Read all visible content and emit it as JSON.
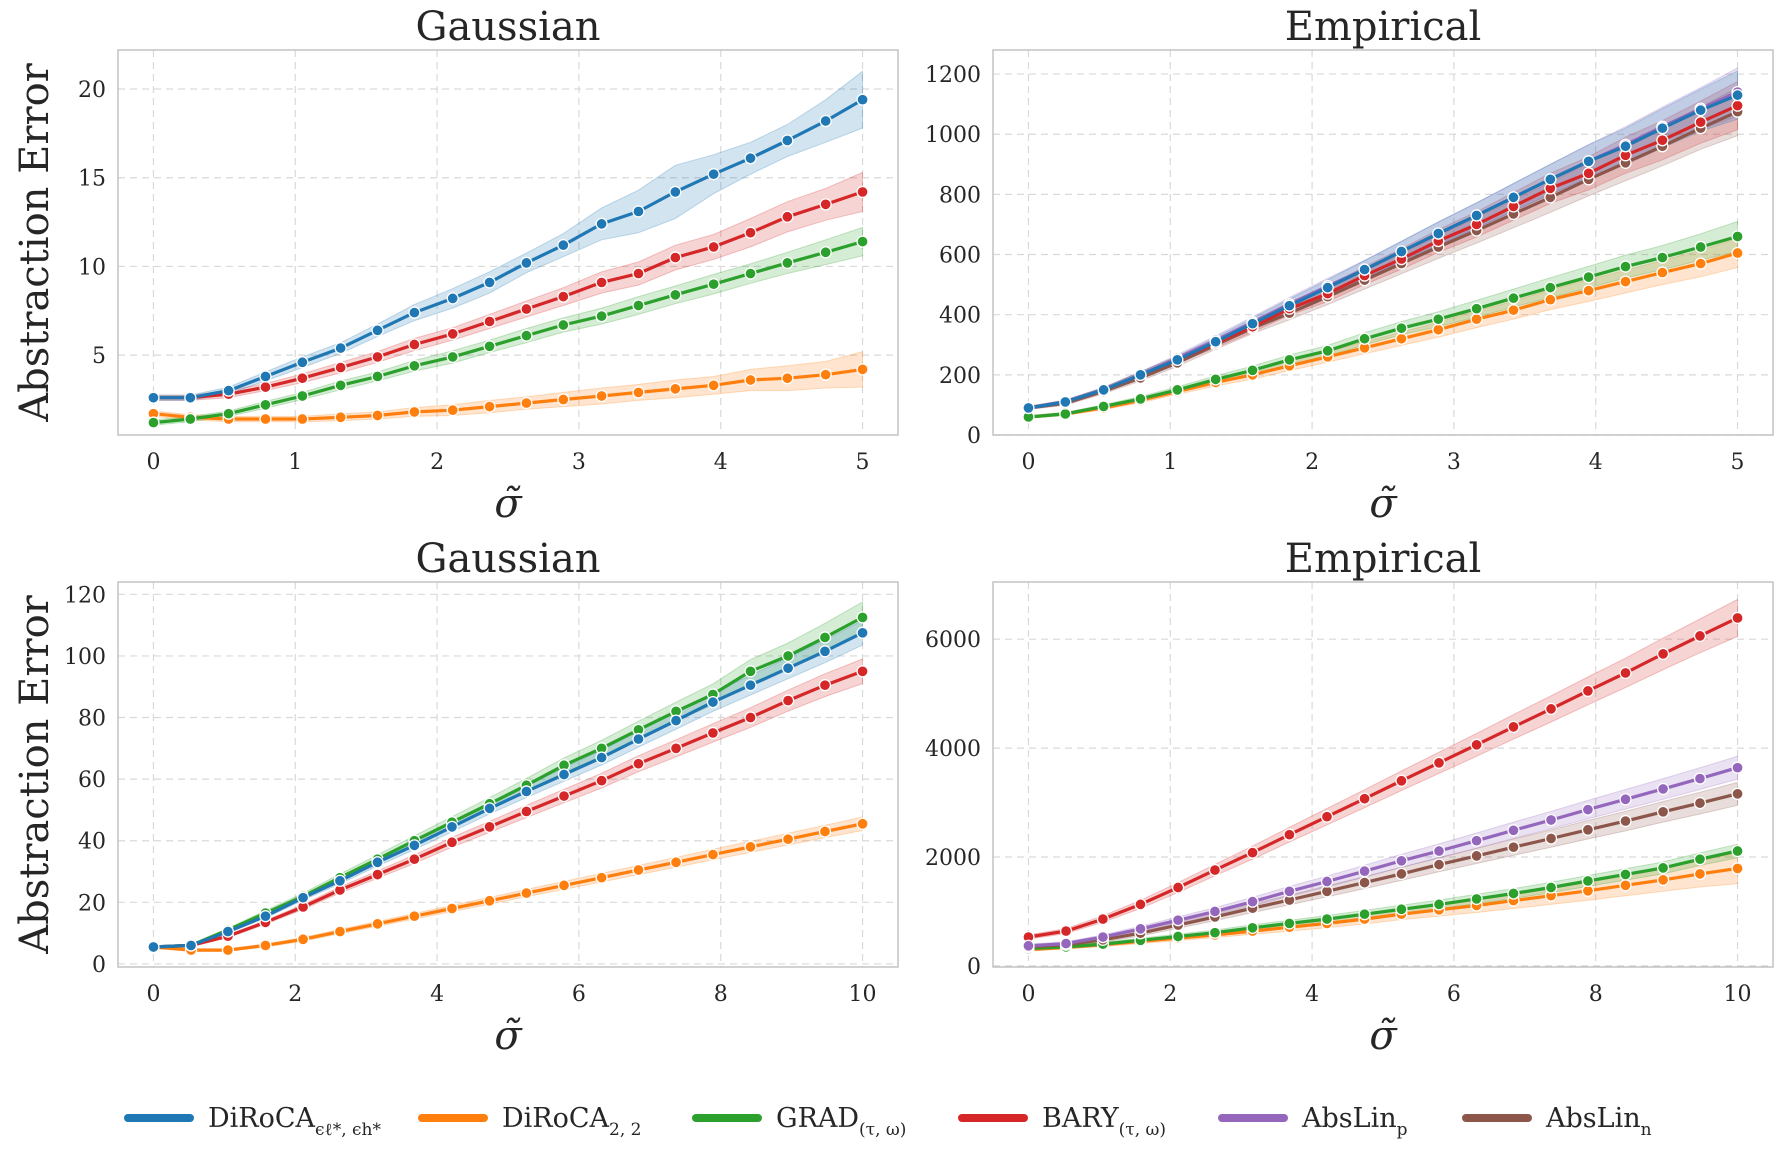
{
  "colors": {
    "diroca_opt": "#1f77b4",
    "diroca_22": "#ff7f0e",
    "grad": "#2ca02c",
    "bary": "#d62728",
    "abslin_p": "#9467bd",
    "abslin_n": "#8c564b"
  },
  "legend": [
    {
      "key": "diroca_opt",
      "base": "DiRoCA",
      "sub": "ϵℓ*, ϵh*"
    },
    {
      "key": "diroca_22",
      "base": "DiRoCA",
      "sub": "2, 2"
    },
    {
      "key": "grad",
      "base": "GRAD",
      "sub": "(τ, ω)"
    },
    {
      "key": "bary",
      "base": "BARY",
      "sub": "(τ, ω)"
    },
    {
      "key": "abslin_p",
      "base": "AbsLin",
      "sub": "p"
    },
    {
      "key": "abslin_n",
      "base": "AbsLin",
      "sub": "n"
    }
  ],
  "chart_data": [
    {
      "type": "line",
      "title": "Gaussian",
      "xlabel": "σ̃",
      "ylabel": "Abstraction Error",
      "xlim": [
        -0.25,
        5.25
      ],
      "ylim": [
        0.5,
        22.2
      ],
      "xticks": [
        "0",
        "1",
        "2",
        "3",
        "4",
        "5"
      ],
      "yticks": [
        "5",
        "10",
        "15",
        "20"
      ],
      "x": [
        0,
        0.26,
        0.53,
        0.79,
        1.05,
        1.32,
        1.58,
        1.84,
        2.11,
        2.37,
        2.63,
        2.89,
        3.16,
        3.42,
        3.68,
        3.95,
        4.21,
        4.47,
        4.74,
        5.0
      ],
      "series": [
        {
          "key": "diroca_opt",
          "values": [
            2.6,
            2.6,
            3.0,
            3.8,
            4.6,
            5.4,
            6.4,
            7.4,
            8.2,
            9.1,
            10.2,
            11.2,
            12.4,
            13.1,
            14.2,
            15.2,
            16.1,
            17.1,
            18.2,
            19.4
          ],
          "band": [
            0.15,
            0.15,
            0.2,
            0.25,
            0.3,
            0.3,
            0.35,
            0.45,
            0.55,
            0.6,
            0.55,
            0.65,
            0.9,
            1.2,
            1.5,
            1.1,
            0.9,
            0.9,
            1.2,
            1.6
          ]
        },
        {
          "key": "diroca_22",
          "values": [
            1.7,
            1.5,
            1.4,
            1.4,
            1.4,
            1.5,
            1.6,
            1.8,
            1.9,
            2.1,
            2.3,
            2.5,
            2.7,
            2.9,
            3.1,
            3.3,
            3.6,
            3.7,
            3.9,
            4.2
          ],
          "band": [
            0.15,
            0.15,
            0.15,
            0.15,
            0.15,
            0.2,
            0.2,
            0.25,
            0.3,
            0.35,
            0.35,
            0.4,
            0.45,
            0.45,
            0.5,
            0.5,
            0.6,
            0.7,
            0.75,
            1.0
          ]
        },
        {
          "key": "grad",
          "values": [
            1.2,
            1.4,
            1.7,
            2.2,
            2.7,
            3.3,
            3.8,
            4.4,
            4.9,
            5.5,
            6.1,
            6.7,
            7.2,
            7.8,
            8.4,
            9.0,
            9.6,
            10.2,
            10.8,
            11.4
          ],
          "band": [
            0.15,
            0.15,
            0.15,
            0.2,
            0.2,
            0.25,
            0.25,
            0.3,
            0.35,
            0.35,
            0.4,
            0.4,
            0.45,
            0.5,
            0.5,
            0.55,
            0.55,
            0.6,
            0.7,
            0.8
          ]
        },
        {
          "key": "bary",
          "values": [
            2.6,
            2.6,
            2.8,
            3.2,
            3.7,
            4.3,
            4.9,
            5.6,
            6.2,
            6.9,
            7.6,
            8.3,
            9.1,
            9.6,
            10.5,
            11.1,
            11.9,
            12.8,
            13.5,
            14.2
          ],
          "band": [
            0.15,
            0.15,
            0.2,
            0.2,
            0.25,
            0.3,
            0.3,
            0.35,
            0.35,
            0.4,
            0.45,
            0.5,
            0.6,
            0.65,
            0.7,
            0.7,
            0.8,
            0.85,
            0.9,
            1.1
          ]
        }
      ]
    },
    {
      "type": "line",
      "title": "Empirical",
      "xlabel": "σ̃",
      "ylabel": "",
      "xlim": [
        -0.25,
        5.25
      ],
      "ylim": [
        0,
        1280
      ],
      "xticks": [
        "0",
        "1",
        "2",
        "3",
        "4",
        "5"
      ],
      "yticks": [
        "0",
        "200",
        "400",
        "600",
        "800",
        "1000",
        "1200"
      ],
      "x": [
        0,
        0.26,
        0.53,
        0.79,
        1.05,
        1.32,
        1.58,
        1.84,
        2.11,
        2.37,
        2.63,
        2.89,
        3.16,
        3.42,
        3.68,
        3.95,
        4.21,
        4.47,
        4.74,
        5.0
      ],
      "series": [
        {
          "key": "diroca_opt",
          "values": [
            90,
            110,
            150,
            200,
            250,
            310,
            370,
            430,
            490,
            550,
            610,
            670,
            730,
            790,
            850,
            910,
            960,
            1020,
            1080,
            1130
          ],
          "band": [
            5,
            6,
            8,
            10,
            12,
            15,
            18,
            22,
            26,
            30,
            34,
            38,
            42,
            46,
            50,
            55,
            60,
            65,
            70,
            80
          ]
        },
        {
          "key": "diroca_22",
          "values": [
            60,
            70,
            90,
            115,
            145,
            175,
            200,
            230,
            260,
            290,
            320,
            350,
            385,
            415,
            450,
            480,
            510,
            540,
            570,
            605
          ],
          "band": [
            4,
            5,
            6,
            8,
            10,
            12,
            14,
            16,
            18,
            20,
            22,
            25,
            28,
            30,
            33,
            36,
            38,
            40,
            44,
            48
          ]
        },
        {
          "key": "grad",
          "values": [
            60,
            70,
            95,
            120,
            150,
            185,
            215,
            250,
            280,
            320,
            355,
            385,
            420,
            455,
            490,
            525,
            560,
            590,
            625,
            660
          ],
          "band": [
            4,
            5,
            6,
            8,
            10,
            12,
            14,
            16,
            18,
            20,
            22,
            25,
            28,
            30,
            33,
            36,
            38,
            40,
            44,
            50
          ]
        },
        {
          "key": "bary",
          "values": [
            90,
            110,
            150,
            200,
            250,
            305,
            360,
            420,
            470,
            530,
            585,
            645,
            700,
            760,
            820,
            870,
            930,
            980,
            1040,
            1095
          ],
          "band": [
            5,
            6,
            8,
            10,
            12,
            15,
            18,
            22,
            26,
            30,
            34,
            38,
            42,
            46,
            50,
            55,
            60,
            65,
            70,
            80
          ]
        },
        {
          "key": "abslin_p",
          "values": [
            90,
            110,
            150,
            200,
            255,
            315,
            375,
            435,
            495,
            550,
            610,
            670,
            730,
            790,
            850,
            910,
            965,
            1025,
            1085,
            1140
          ],
          "band": [
            5,
            6,
            8,
            10,
            12,
            15,
            18,
            22,
            26,
            30,
            34,
            38,
            42,
            46,
            50,
            55,
            60,
            65,
            70,
            80
          ]
        },
        {
          "key": "abslin_n",
          "values": [
            90,
            105,
            145,
            190,
            240,
            300,
            355,
            405,
            460,
            515,
            570,
            625,
            680,
            735,
            790,
            850,
            905,
            960,
            1020,
            1075
          ],
          "band": [
            5,
            6,
            8,
            10,
            12,
            15,
            18,
            22,
            26,
            30,
            34,
            38,
            42,
            46,
            50,
            55,
            60,
            65,
            70,
            80
          ]
        }
      ]
    },
    {
      "type": "line",
      "title": "Gaussian",
      "xlabel": "σ̃",
      "ylabel": "Abstraction Error",
      "xlim": [
        -0.5,
        10.5
      ],
      "ylim": [
        -1,
        124
      ],
      "xticks": [
        "0",
        "2",
        "4",
        "6",
        "8",
        "10"
      ],
      "yticks": [
        "0",
        "20",
        "40",
        "60",
        "80",
        "100",
        "120"
      ],
      "x": [
        0,
        0.53,
        1.05,
        1.58,
        2.11,
        2.63,
        3.16,
        3.68,
        4.21,
        4.74,
        5.26,
        5.79,
        6.32,
        6.84,
        7.37,
        7.89,
        8.42,
        8.95,
        9.47,
        10.0
      ],
      "series": [
        {
          "key": "diroca_opt",
          "values": [
            5.5,
            6.0,
            10.5,
            15.5,
            21.5,
            27.0,
            33.0,
            38.5,
            44.5,
            50.5,
            56.0,
            61.5,
            67.0,
            73.0,
            79.0,
            85.0,
            90.5,
            96.0,
            101.5,
            107.5
          ],
          "band": [
            0.4,
            0.4,
            0.5,
            0.6,
            0.8,
            1.0,
            1.2,
            1.4,
            1.6,
            1.8,
            2.0,
            2.2,
            2.4,
            2.6,
            2.8,
            3.0,
            3.2,
            3.4,
            3.7,
            4.0
          ]
        },
        {
          "key": "diroca_22",
          "values": [
            5.5,
            4.5,
            4.5,
            6.0,
            8.0,
            10.5,
            13.0,
            15.5,
            18.0,
            20.5,
            23.0,
            25.5,
            28.0,
            30.5,
            33.0,
            35.5,
            38.0,
            40.5,
            43.0,
            45.5
          ],
          "band": [
            0.4,
            0.4,
            0.4,
            0.5,
            0.6,
            0.7,
            0.8,
            0.9,
            1.0,
            1.1,
            1.2,
            1.3,
            1.4,
            1.5,
            1.6,
            1.7,
            1.8,
            1.9,
            2.0,
            2.2
          ]
        },
        {
          "key": "grad",
          "values": [
            5.5,
            6.0,
            11.0,
            16.5,
            22.0,
            28.0,
            34.0,
            40.0,
            46.0,
            52.0,
            58.0,
            64.5,
            70.0,
            76.0,
            82.0,
            87.5,
            95.0,
            100.0,
            106.0,
            112.5
          ],
          "band": [
            0.4,
            0.4,
            0.6,
            0.8,
            1.0,
            1.2,
            1.4,
            1.6,
            1.8,
            2.0,
            2.2,
            2.4,
            2.6,
            2.8,
            3.0,
            3.4,
            3.8,
            4.2,
            4.6,
            5.0
          ]
        },
        {
          "key": "bary",
          "values": [
            5.5,
            6.0,
            9.0,
            13.5,
            18.5,
            24.0,
            29.0,
            34.0,
            39.5,
            44.5,
            49.5,
            54.5,
            59.5,
            65.0,
            70.0,
            75.0,
            80.0,
            85.5,
            90.5,
            95.0
          ],
          "band": [
            0.4,
            0.4,
            0.5,
            0.6,
            0.8,
            1.0,
            1.2,
            1.4,
            1.6,
            1.8,
            2.0,
            2.2,
            2.4,
            2.6,
            2.8,
            3.0,
            3.2,
            3.4,
            3.7,
            4.0
          ]
        }
      ]
    },
    {
      "type": "line",
      "title": "Empirical",
      "xlabel": "σ̃",
      "ylabel": "",
      "xlim": [
        -0.5,
        10.5
      ],
      "ylim": [
        -20,
        7050
      ],
      "xticks": [
        "0",
        "2",
        "4",
        "6",
        "8",
        "10"
      ],
      "yticks": [
        "0",
        "2000",
        "4000",
        "6000"
      ],
      "x": [
        0,
        0.53,
        1.05,
        1.58,
        2.11,
        2.63,
        3.16,
        3.68,
        4.21,
        4.74,
        5.26,
        5.79,
        6.32,
        6.84,
        7.37,
        7.89,
        8.42,
        8.95,
        9.47,
        10.0
      ],
      "series": [
        {
          "key": "diroca_22",
          "values": [
            300,
            340,
            390,
            450,
            510,
            570,
            640,
            710,
            780,
            860,
            950,
            1030,
            1110,
            1200,
            1290,
            1380,
            1480,
            1580,
            1690,
            1790
          ],
          "band": [
            30,
            30,
            35,
            40,
            45,
            50,
            60,
            70,
            80,
            90,
            100,
            115,
            130,
            145,
            160,
            175,
            190,
            210,
            240,
            280
          ]
        },
        {
          "key": "grad",
          "values": [
            320,
            350,
            400,
            470,
            540,
            610,
            700,
            780,
            860,
            950,
            1040,
            1130,
            1230,
            1330,
            1440,
            1560,
            1680,
            1800,
            1960,
            2110
          ],
          "band": [
            30,
            30,
            35,
            40,
            45,
            50,
            55,
            60,
            65,
            70,
            75,
            80,
            85,
            90,
            95,
            100,
            105,
            110,
            115,
            125
          ]
        },
        {
          "key": "bary",
          "values": [
            530,
            640,
            860,
            1130,
            1440,
            1760,
            2080,
            2410,
            2740,
            3070,
            3400,
            3730,
            4060,
            4390,
            4720,
            5050,
            5380,
            5730,
            6060,
            6390
          ],
          "band": [
            40,
            45,
            60,
            75,
            90,
            105,
            120,
            135,
            150,
            165,
            180,
            195,
            210,
            225,
            240,
            255,
            270,
            290,
            310,
            340
          ]
        },
        {
          "key": "abslin_p",
          "values": [
            370,
            410,
            530,
            680,
            840,
            1000,
            1180,
            1370,
            1550,
            1740,
            1930,
            2110,
            2300,
            2490,
            2680,
            2870,
            3060,
            3250,
            3440,
            3640
          ],
          "band": [
            30,
            35,
            40,
            50,
            60,
            70,
            80,
            90,
            100,
            110,
            120,
            130,
            140,
            150,
            160,
            170,
            180,
            190,
            200,
            210
          ]
        },
        {
          "key": "abslin_n",
          "values": [
            350,
            390,
            480,
            600,
            750,
            900,
            1060,
            1210,
            1370,
            1530,
            1690,
            1860,
            2020,
            2180,
            2340,
            2500,
            2660,
            2830,
            2990,
            3160
          ],
          "band": [
            30,
            35,
            40,
            50,
            60,
            70,
            80,
            90,
            100,
            110,
            120,
            130,
            140,
            150,
            160,
            170,
            180,
            190,
            200,
            210
          ]
        }
      ]
    }
  ]
}
